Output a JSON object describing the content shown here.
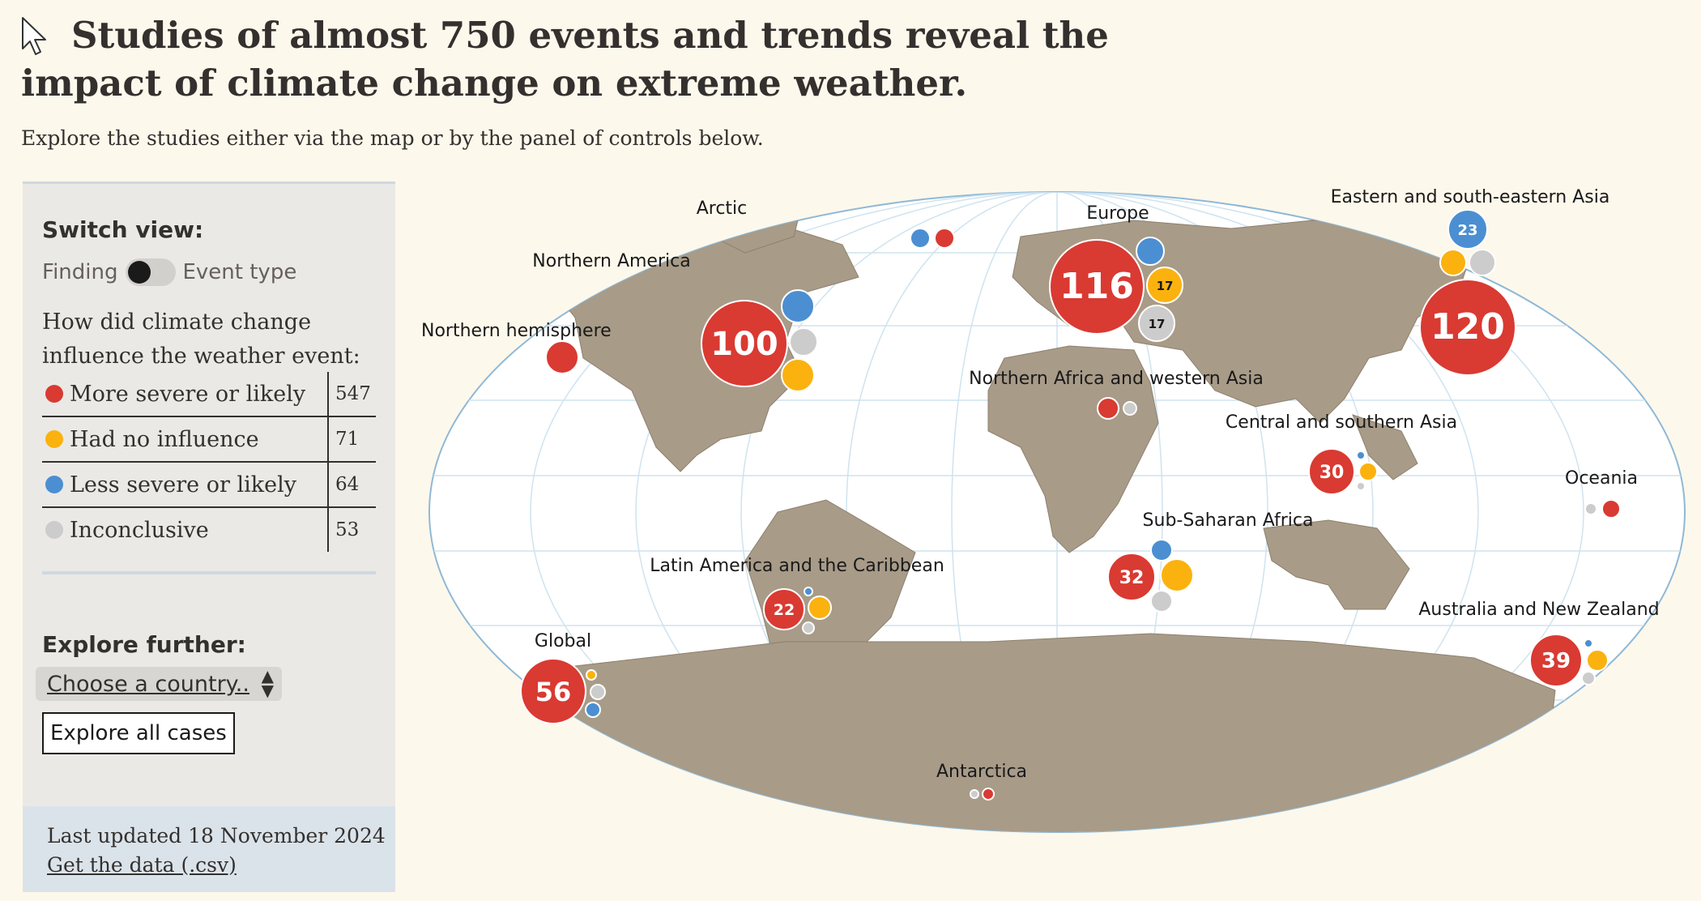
{
  "header": {
    "title": "Studies of almost 750 events and trends reveal the impact of climate change on extreme weather.",
    "subtitle": "Explore the studies either via the map or by the panel of controls below."
  },
  "panel": {
    "switch_title": "Switch view:",
    "toggle_left": "Finding",
    "toggle_right": "Event type",
    "question": "How did climate change influence the weather event:",
    "legend": [
      {
        "label": "More severe or likely",
        "count": "547",
        "color": "#d93a32"
      },
      {
        "label": "Had no influence",
        "count": "71",
        "color": "#fbb20f"
      },
      {
        "label": "Less severe or likely",
        "count": "64",
        "color": "#4b8fd2"
      },
      {
        "label": "Inconclusive",
        "count": "53",
        "color": "#cccccc"
      }
    ],
    "explore_title": "Explore further:",
    "select_value": "Choose a country..",
    "explore_button": "Explore all cases",
    "updated": "Last updated 18 November 2024",
    "get_data": "Get the data (.csv)"
  },
  "colors": {
    "more": "#d93a32",
    "none": "#fbb20f",
    "less": "#4b8fd2",
    "inconclusive": "#cccccc",
    "land": "#a89b88",
    "ocean": "#ffffff",
    "background": "#fdf8ec"
  },
  "regions": [
    {
      "name": "Arctic",
      "label": "Arctic"
    },
    {
      "name": "Europe",
      "label": "Europe",
      "values": [
        "116",
        "17",
        "17"
      ]
    },
    {
      "name": "Eastern and south-eastern Asia",
      "label": "Eastern and south-eastern Asia",
      "values": [
        "120",
        "23"
      ]
    },
    {
      "name": "Northern America",
      "label": "Northern America",
      "values": [
        "100"
      ]
    },
    {
      "name": "Northern hemisphere",
      "label": "Northern hemisphere"
    },
    {
      "name": "Northern Africa and western Asia",
      "label": "Northern Africa and western Asia"
    },
    {
      "name": "Central and southern Asia",
      "label": "Central and southern Asia",
      "values": [
        "30"
      ]
    },
    {
      "name": "Oceania",
      "label": "Oceania"
    },
    {
      "name": "Sub-Saharan Africa",
      "label": "Sub-Saharan Africa",
      "values": [
        "32"
      ]
    },
    {
      "name": "Latin America and the Caribbean",
      "label": "Latin America and the Caribbean",
      "values": [
        "22"
      ]
    },
    {
      "name": "Australia and New Zealand",
      "label": "Australia and New Zealand",
      "values": [
        "39"
      ]
    },
    {
      "name": "Global",
      "label": "Global",
      "values": [
        "56"
      ]
    },
    {
      "name": "Antarctica",
      "label": "Antarctica"
    }
  ]
}
